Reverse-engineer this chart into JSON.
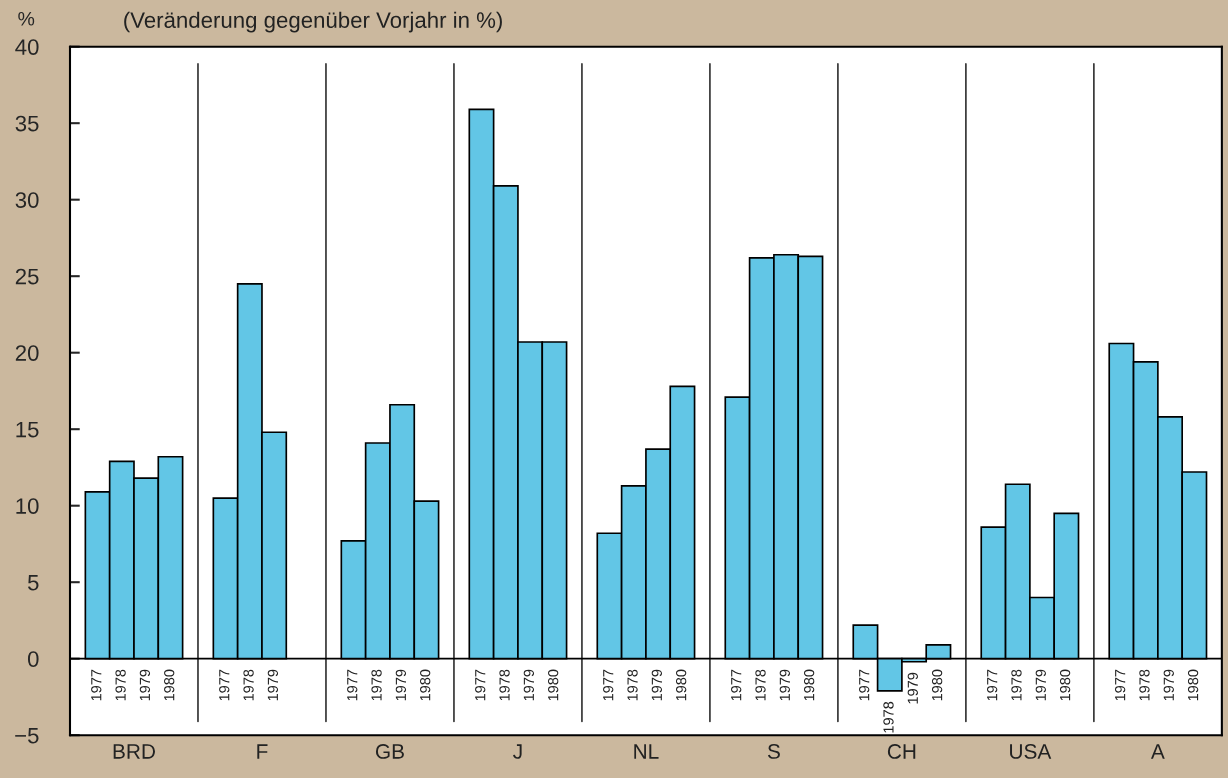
{
  "chart_data": {
    "type": "bar",
    "title": "(Veränderung gegenüber Vorjahr in %)",
    "ylabel": "%",
    "categories": [
      "BRD",
      "F",
      "GB",
      "J",
      "NL",
      "S",
      "CH",
      "USA",
      "A"
    ],
    "series": [
      {
        "name": "1977",
        "color": "#62c6e6",
        "values": [
          10.9,
          10.5,
          7.7,
          35.9,
          8.2,
          17.1,
          2.2,
          8.6,
          20.6
        ]
      },
      {
        "name": "1978",
        "color": "#62c6e6",
        "values": [
          12.9,
          24.5,
          14.1,
          30.9,
          11.3,
          26.2,
          -2.1,
          11.4,
          19.4
        ]
      },
      {
        "name": "1979",
        "color": "#62c6e6",
        "values": [
          11.8,
          14.8,
          16.6,
          20.7,
          13.7,
          26.4,
          -0.2,
          4.0,
          15.8
        ]
      },
      {
        "name": "1980",
        "color": "#62c6e6",
        "values": [
          13.2,
          null,
          10.3,
          20.7,
          17.8,
          26.3,
          0.9,
          9.5,
          12.2
        ]
      }
    ],
    "ylim": [
      -5,
      40
    ],
    "yticks": [
      -5,
      0,
      5,
      10,
      15,
      20,
      25,
      30,
      35,
      40
    ],
    "grid": "x",
    "legend": false
  }
}
